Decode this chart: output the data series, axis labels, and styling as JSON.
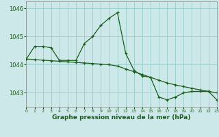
{
  "xlabel": "Graphe pression niveau de la mer (hPa)",
  "bg_color": "#cce8e8",
  "grid_color": "#99cccc",
  "line_color": "#1a5c1a",
  "x_values": [
    0,
    1,
    2,
    3,
    4,
    5,
    6,
    7,
    8,
    9,
    10,
    11,
    12,
    13,
    14,
    15,
    16,
    17,
    18,
    19,
    20,
    21,
    22,
    23
  ],
  "y_main": [
    1044.2,
    1044.65,
    1044.65,
    1044.6,
    1044.15,
    1044.15,
    1044.15,
    1044.75,
    1045.0,
    1045.4,
    1045.65,
    1045.85,
    1044.4,
    1043.8,
    1043.6,
    1043.55,
    1042.85,
    1042.75,
    1042.85,
    1043.0,
    1043.05,
    1043.05,
    1043.05,
    1042.75
  ],
  "y_trend": [
    1044.2,
    1044.18,
    1044.16,
    1044.14,
    1044.12,
    1044.1,
    1044.08,
    1044.06,
    1044.04,
    1044.02,
    1044.0,
    1043.95,
    1043.85,
    1043.75,
    1043.65,
    1043.55,
    1043.45,
    1043.35,
    1043.28,
    1043.22,
    1043.16,
    1043.1,
    1043.05,
    1043.0
  ],
  "ylim": [
    1042.5,
    1046.25
  ],
  "yticks": [
    1043,
    1044,
    1045,
    1046
  ],
  "xlim": [
    0,
    23
  ]
}
